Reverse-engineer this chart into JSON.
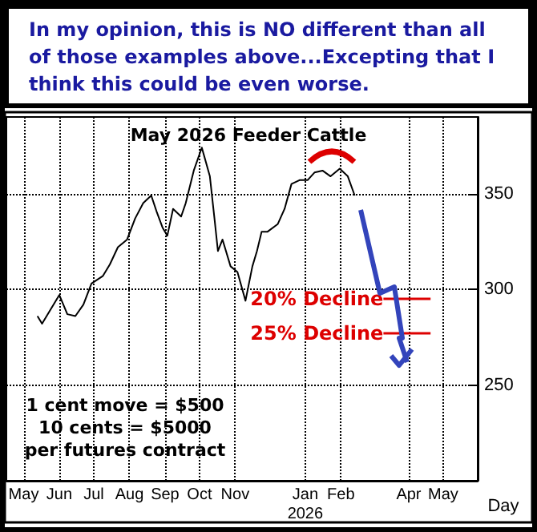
{
  "chart_data": {
    "type": "line",
    "title": "May 2026 Feeder Cattle",
    "subtitle": "In my opinion, this is NO different than all of those examples above...Excepting that I think this could be even worse.",
    "xlabel": "Day",
    "x": [
      "2025-05-28",
      "2025-06-01",
      "2025-06-16",
      "2025-06-23",
      "2025-06-30",
      "2025-07-07",
      "2025-07-14",
      "2025-07-24",
      "2025-07-30",
      "2025-08-06",
      "2025-08-14",
      "2025-08-21",
      "2025-08-28",
      "2025-09-04",
      "2025-09-09",
      "2025-09-14",
      "2025-09-18",
      "2025-09-23",
      "2025-09-30",
      "2025-10-04",
      "2025-10-11",
      "2025-10-18",
      "2025-10-25",
      "2025-10-29",
      "2025-11-01",
      "2025-11-05",
      "2025-11-12",
      "2025-11-18",
      "2025-11-25",
      "2025-12-01",
      "2025-12-05",
      "2025-12-09",
      "2025-12-14",
      "2025-12-23",
      "2025-12-29",
      "2026-01-04",
      "2026-01-11",
      "2026-01-18",
      "2026-01-24",
      "2026-01-31",
      "2026-02-07",
      "2026-02-15",
      "2026-02-22",
      "2026-02-28"
    ],
    "series": [
      {
        "color": "#000000",
        "values": [
          286,
          282,
          297,
          287,
          286,
          292,
          303,
          307,
          313,
          322,
          326,
          337,
          345,
          349,
          340,
          332,
          328,
          342,
          338,
          345,
          362,
          374,
          359,
          337,
          320,
          326,
          312,
          309,
          294,
          312,
          320,
          330,
          330,
          334,
          342,
          355,
          357,
          357,
          361,
          362,
          359,
          363,
          359,
          349
        ]
      }
    ],
    "xlim": [
      "2025-05-01",
      "2026-06-15"
    ],
    "xticks": [
      {
        "value": "2025-05-16",
        "label": "May"
      },
      {
        "value": "2025-06-16",
        "label": "Jun"
      },
      {
        "value": "2025-07-16",
        "label": "Jul"
      },
      {
        "value": "2025-08-16",
        "label": "Aug"
      },
      {
        "value": "2025-09-16",
        "label": "Sep"
      },
      {
        "value": "2025-10-16",
        "label": "Oct"
      },
      {
        "value": "2025-11-16",
        "label": "Nov"
      },
      {
        "value": "2026-01-16",
        "label": "Jan\n2026"
      },
      {
        "value": "2026-02-16",
        "label": "Feb"
      },
      {
        "value": "2026-04-16",
        "label": "Apr"
      },
      {
        "value": "2026-05-16",
        "label": "May"
      }
    ],
    "ylim": [
      200,
      390
    ],
    "yticks": [
      250,
      300,
      350
    ],
    "grid": true,
    "marker": "none",
    "line_style": "solid",
    "ref_lines": [
      {
        "axis": "y",
        "value": 295,
        "label": "20% Decline",
        "color": "#dd0000"
      },
      {
        "axis": "y",
        "value": 277,
        "label": "25% Decline",
        "color": "#dd0000"
      }
    ],
    "annotations": [
      "1 cent move = $500\n10 cents = $5000\nper futures contract"
    ]
  }
}
